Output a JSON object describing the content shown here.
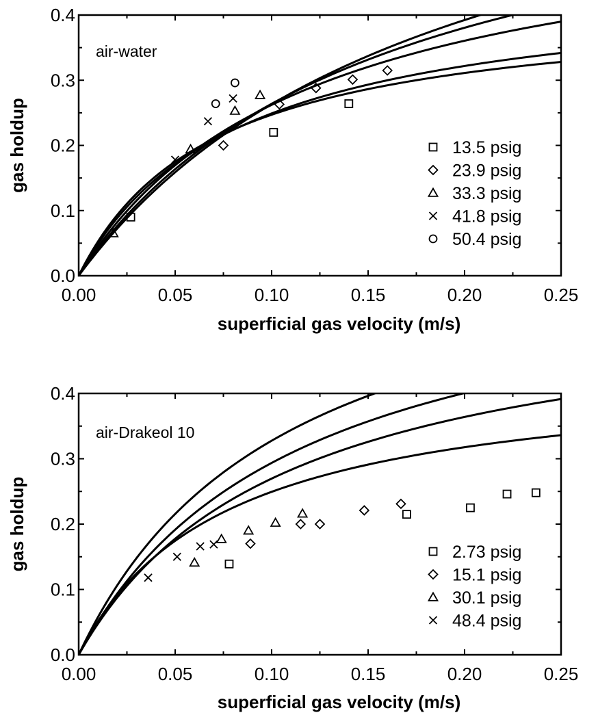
{
  "chart_data": [
    {
      "type": "scatter",
      "title": "air-water",
      "xlabel": "superficial gas velocity (m/s)",
      "ylabel": "gas holdup",
      "xlim": [
        0,
        0.25
      ],
      "ylim": [
        0,
        0.4
      ],
      "xticks": [
        "0.00",
        "0.05",
        "0.10",
        "0.15",
        "0.20",
        "0.25"
      ],
      "yticks": [
        "0.0",
        "0.1",
        "0.2",
        "0.3",
        "0.4"
      ],
      "legend_position": "lower-right",
      "series": [
        {
          "name": "13.5 psig",
          "marker": "square",
          "x": [
            0.027,
            0.101,
            0.14
          ],
          "y": [
            0.09,
            0.22,
            0.264
          ],
          "fit_b": 6.0,
          "fit_c": 0.2
        },
        {
          "name": "23.9 psig",
          "marker": "diamond",
          "x": [
            0.075,
            0.104,
            0.123,
            0.142,
            0.16
          ],
          "y": [
            0.2,
            0.263,
            0.288,
            0.301,
            0.315
          ],
          "fit_b": 5.5,
          "fit_c": 0.3
        },
        {
          "name": "33.3 psig",
          "marker": "triangle",
          "x": [
            0.018,
            0.058,
            0.081,
            0.094
          ],
          "y": [
            0.065,
            0.194,
            0.253,
            0.277
          ],
          "fit_b": 4.8,
          "fit_c": 0.65
        },
        {
          "name": "41.8 psig",
          "marker": "x",
          "x": [
            0.05,
            0.067,
            0.08
          ],
          "y": [
            0.178,
            0.237,
            0.272
          ],
          "fit_b": 4.3,
          "fit_c": 0.95
        },
        {
          "name": "50.4 psig",
          "marker": "circle",
          "x": [
            0.071,
            0.081
          ],
          "y": [
            0.264,
            0.296
          ],
          "fit_b": 4.0,
          "fit_c": 1.2
        }
      ]
    },
    {
      "type": "scatter",
      "title": "air-Drakeol 10",
      "xlabel": "superficial gas velocity (m/s)",
      "ylabel": "gas holdup",
      "xlim": [
        0,
        0.25
      ],
      "ylim": [
        0,
        0.4
      ],
      "xticks": [
        "0.00",
        "0.05",
        "0.10",
        "0.15",
        "0.20",
        "0.25"
      ],
      "yticks": [
        "0.0",
        "0.1",
        "0.2",
        "0.3",
        "0.4"
      ],
      "legend_position": "lower-right",
      "series": [
        {
          "name": "2.73 psig",
          "marker": "square",
          "x": [
            0.078,
            0.17,
            0.203,
            0.222,
            0.237
          ],
          "y": [
            0.139,
            0.215,
            0.225,
            0.246,
            0.248
          ],
          "fit_b": 5.8,
          "fit_c": 0.25
        },
        {
          "name": "15.1 psig",
          "marker": "diamond",
          "x": [
            0.089,
            0.115,
            0.125,
            0.148,
            0.167
          ],
          "y": [
            0.17,
            0.2,
            0.2,
            0.221,
            0.231
          ],
          "fit_b": 5.2,
          "fit_c": 0.6
        },
        {
          "name": "30.1 psig",
          "marker": "triangle",
          "x": [
            0.06,
            0.074,
            0.088,
            0.102,
            0.116
          ],
          "y": [
            0.141,
            0.177,
            0.19,
            0.202,
            0.216
          ],
          "fit_b": 5.5,
          "fit_c": 0.8
        },
        {
          "name": "48.4 psig",
          "marker": "x",
          "x": [
            0.036,
            0.051,
            0.063,
            0.07
          ],
          "y": [
            0.118,
            0.15,
            0.166,
            0.169
          ],
          "fit_b": 6.3,
          "fit_c": 0.95
        }
      ]
    }
  ]
}
